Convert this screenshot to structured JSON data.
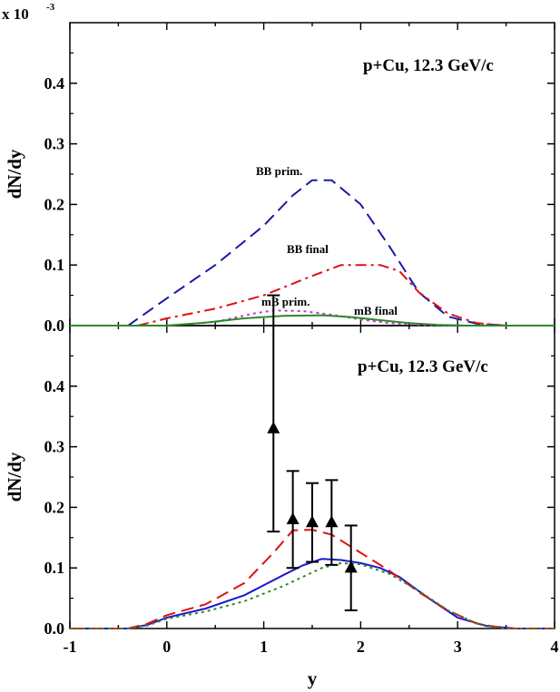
{
  "chart_data": [
    {
      "type": "line",
      "panel": "top",
      "title": "p+Cu, 12.3 GeV/c",
      "ylabel": "dN/dy",
      "y_multiplier": "x 10",
      "y_multiplier_exp": "-3",
      "xlim": [
        -1,
        4
      ],
      "ylim": [
        0,
        0.5
      ],
      "yticks": [
        0.0,
        0.1,
        0.2,
        0.3,
        0.4
      ],
      "ytick_labels": [
        "0.0",
        "0.1",
        "0.2",
        "0.3",
        "0.4"
      ],
      "series": [
        {
          "name": "BB prim.",
          "color": "#1a1aa6",
          "dash": "long-dash",
          "x": [
            -1,
            -0.4,
            0.0,
            0.5,
            1.0,
            1.3,
            1.5,
            1.7,
            2.0,
            2.3,
            2.6,
            2.9,
            3.2,
            3.5,
            4.0
          ],
          "y": [
            0,
            0,
            0.045,
            0.1,
            0.165,
            0.215,
            0.24,
            0.24,
            0.2,
            0.13,
            0.055,
            0.015,
            0.003,
            0,
            0
          ]
        },
        {
          "name": "BB final",
          "color": "#e01010",
          "dash": "dash-dot",
          "x": [
            -1,
            -0.3,
            0.0,
            0.5,
            1.0,
            1.5,
            1.8,
            2.2,
            2.4,
            2.6,
            2.9,
            3.2,
            3.5,
            4.0
          ],
          "y": [
            0,
            0,
            0.012,
            0.028,
            0.05,
            0.082,
            0.1,
            0.1,
            0.09,
            0.055,
            0.02,
            0.004,
            0,
            0
          ]
        },
        {
          "name": "mB prim.",
          "color": "#cc33cc",
          "dash": "dotted",
          "x": [
            -1,
            0.0,
            0.5,
            0.9,
            1.1,
            1.4,
            1.7,
            2.0,
            2.3,
            2.6,
            3.0,
            4.0
          ],
          "y": [
            0,
            0,
            0.006,
            0.02,
            0.025,
            0.024,
            0.018,
            0.01,
            0.004,
            0.001,
            0,
            0
          ]
        },
        {
          "name": "mB final",
          "color": "#2a8a2a",
          "dash": "solid",
          "x": [
            -1,
            0.0,
            0.4,
            0.8,
            1.2,
            1.6,
            1.9,
            2.2,
            2.5,
            2.8,
            3.1,
            4.0
          ],
          "y": [
            0,
            0,
            0.005,
            0.012,
            0.016,
            0.017,
            0.014,
            0.009,
            0.004,
            0.001,
            0,
            0
          ]
        }
      ],
      "annotations": [
        "BB prim.",
        "BB final",
        "mB prim.",
        "mB final"
      ]
    },
    {
      "type": "line",
      "panel": "bottom",
      "title": "p+Cu, 12.3 GeV/c",
      "xlabel": "y",
      "ylabel": "dN/dy",
      "xlim": [
        -1,
        4
      ],
      "ylim": [
        0,
        0.5
      ],
      "xticks": [
        -1,
        0,
        1,
        2,
        3,
        4
      ],
      "xtick_labels": [
        "-1",
        "0",
        "1",
        "2",
        "3",
        "4"
      ],
      "yticks": [
        0.0,
        0.1,
        0.2,
        0.3,
        0.4
      ],
      "ytick_labels": [
        "0.0",
        "0.1",
        "0.2",
        "0.3",
        "0.4"
      ],
      "series": [
        {
          "name": "solid blue",
          "color": "#1a1acc",
          "dash": "solid",
          "x": [
            -1,
            -0.4,
            -0.2,
            0.0,
            0.4,
            0.8,
            1.2,
            1.4,
            1.6,
            1.8,
            2.0,
            2.2,
            2.4,
            2.7,
            3.0,
            3.3,
            3.6,
            4.0
          ],
          "y": [
            0,
            0,
            0.006,
            0.018,
            0.033,
            0.055,
            0.088,
            0.104,
            0.115,
            0.113,
            0.108,
            0.1,
            0.085,
            0.05,
            0.018,
            0.004,
            0,
            0
          ]
        },
        {
          "name": "dashed red",
          "color": "#e01010",
          "dash": "long-dash",
          "x": [
            -1,
            -0.4,
            -0.2,
            0.0,
            0.4,
            0.8,
            1.1,
            1.3,
            1.5,
            1.7,
            2.0,
            2.3,
            2.6,
            2.9,
            3.2,
            3.5,
            4.0
          ],
          "y": [
            0,
            0,
            0.008,
            0.022,
            0.04,
            0.075,
            0.125,
            0.162,
            0.163,
            0.155,
            0.125,
            0.095,
            0.06,
            0.03,
            0.008,
            0,
            0
          ]
        },
        {
          "name": "dotted green",
          "color": "#2a8a2a",
          "dash": "dotted",
          "x": [
            -1,
            -0.4,
            -0.2,
            0.0,
            0.4,
            0.8,
            1.2,
            1.6,
            1.8,
            2.0,
            2.3,
            2.6,
            2.9,
            3.2,
            3.5,
            4.0
          ],
          "y": [
            0,
            0,
            0.005,
            0.016,
            0.028,
            0.045,
            0.07,
            0.1,
            0.108,
            0.106,
            0.09,
            0.062,
            0.03,
            0.008,
            0,
            0
          ]
        }
      ],
      "points": {
        "name": "data",
        "marker": "triangle-up",
        "x": [
          1.1,
          1.3,
          1.5,
          1.7,
          1.9
        ],
        "y": [
          0.33,
          0.18,
          0.175,
          0.175,
          0.1
        ],
        "yerr_low": [
          0.16,
          0.1,
          0.11,
          0.105,
          0.03
        ],
        "yerr_high": [
          0.55,
          0.26,
          0.24,
          0.245,
          0.17
        ]
      }
    }
  ]
}
